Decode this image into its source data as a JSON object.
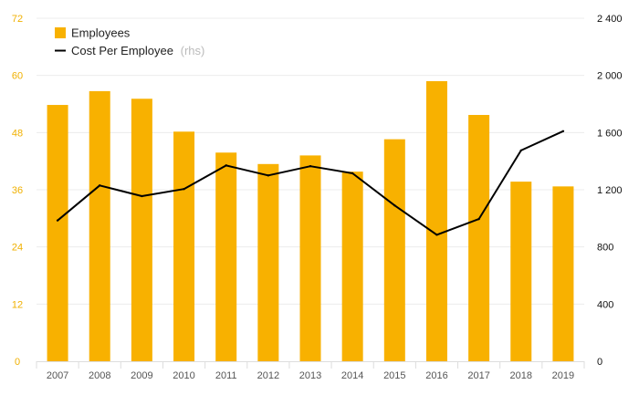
{
  "chart_data": {
    "type": "bar",
    "categories": [
      "2007",
      "2008",
      "2009",
      "2010",
      "2011",
      "2012",
      "2013",
      "2014",
      "2015",
      "2016",
      "2017",
      "2018",
      "2019"
    ],
    "series": [
      {
        "name": "Employees",
        "type": "bar",
        "axis": "left",
        "color": "#f8b100",
        "values": [
          53.8,
          56.7,
          55.1,
          48.2,
          43.8,
          41.4,
          43.2,
          39.8,
          46.6,
          58.8,
          51.7,
          37.7,
          36.7
        ]
      },
      {
        "name": "Cost Per Employee",
        "name_suffix": "(rhs)",
        "type": "line",
        "axis": "right",
        "color": "#000000",
        "values": [
          985,
          1230,
          1155,
          1205,
          1370,
          1300,
          1365,
          1315,
          1090,
          885,
          995,
          1475,
          1610
        ]
      }
    ],
    "y_left": {
      "ticks": [
        "0",
        "12",
        "24",
        "36",
        "48",
        "60",
        "72"
      ],
      "ylim": [
        0,
        72
      ],
      "color": "#f0b000"
    },
    "y_right": {
      "ticks": [
        "0",
        "400",
        "800",
        "1 200",
        "1 600",
        "2 000",
        "2 400"
      ],
      "ylim": [
        0,
        2400
      ],
      "color": "#111111"
    },
    "grid": true,
    "legend_position": "top-left"
  }
}
